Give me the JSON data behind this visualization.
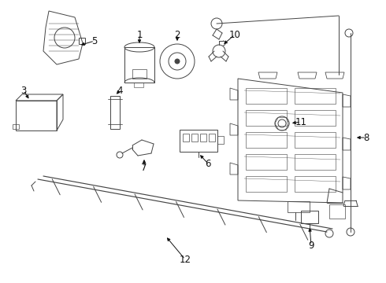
{
  "bg_color": "#ffffff",
  "line_color": "#444444",
  "label_color": "#111111",
  "fig_width": 4.9,
  "fig_height": 3.6,
  "dpi": 100,
  "lw": 0.7,
  "label_fontsize": 8.5
}
